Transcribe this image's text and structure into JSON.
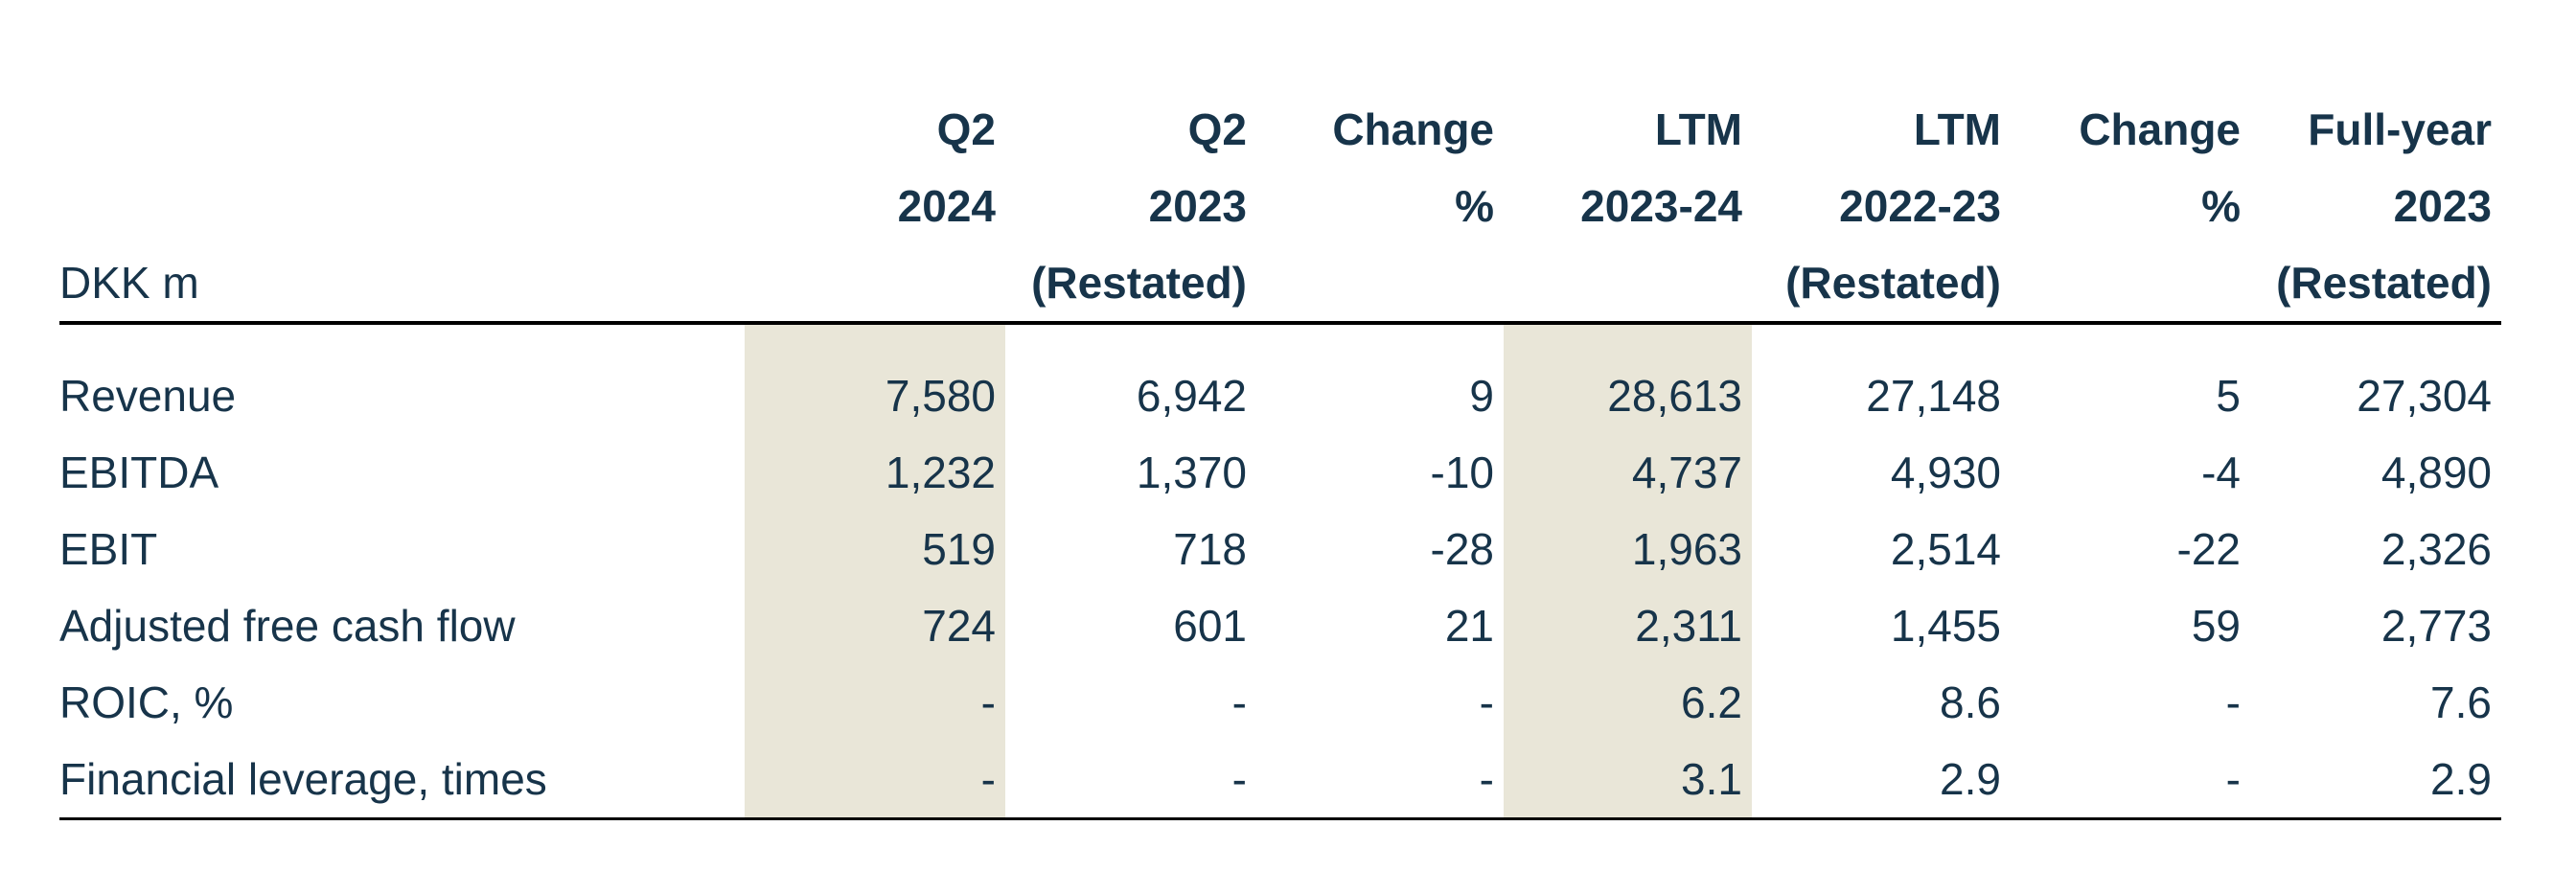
{
  "document": {
    "unit_label": "DKK m"
  },
  "table": {
    "header": {
      "columns": [
        {
          "line1": "Q2",
          "line2": "2024",
          "line3": ""
        },
        {
          "line1": "Q2",
          "line2": "2023",
          "line3": "(Restated)"
        },
        {
          "line1": "Change",
          "line2": "%",
          "line3": ""
        },
        {
          "line1": "LTM",
          "line2": "2023-24",
          "line3": ""
        },
        {
          "line1": "LTM",
          "line2": "2022-23",
          "line3": "(Restated)"
        },
        {
          "line1": "Change",
          "line2": "%",
          "line3": ""
        },
        {
          "line1": "Full-year",
          "line2": "2023",
          "line3": "(Restated)"
        }
      ]
    },
    "highlighted_column_indexes": [
      0,
      3
    ],
    "rows": [
      {
        "label": "Revenue",
        "values": [
          "7,580",
          "6,942",
          "9",
          "28,613",
          "27,148",
          "5",
          "27,304"
        ]
      },
      {
        "label": "EBITDA",
        "values": [
          "1,232",
          "1,370",
          "-10",
          "4,737",
          "4,930",
          "-4",
          "4,890"
        ]
      },
      {
        "label": "EBIT",
        "values": [
          "519",
          "718",
          "-28",
          "1,963",
          "2,514",
          "-22",
          "2,326"
        ]
      },
      {
        "label": "Adjusted free cash flow",
        "values": [
          "724",
          "601",
          "21",
          "2,311",
          "1,455",
          "59",
          "2,773"
        ]
      },
      {
        "label": "ROIC, %",
        "values": [
          "-",
          "-",
          "-",
          "6.2",
          "8.6",
          "-",
          "7.6"
        ]
      },
      {
        "label": "Financial leverage, times",
        "values": [
          "-",
          "-",
          "-",
          "3.1",
          "2.9",
          "-",
          "2.9"
        ]
      }
    ]
  },
  "colors": {
    "text": "#17344a",
    "column_highlight": "#e9e6d8",
    "rule": "#000000",
    "background": "#ffffff"
  }
}
